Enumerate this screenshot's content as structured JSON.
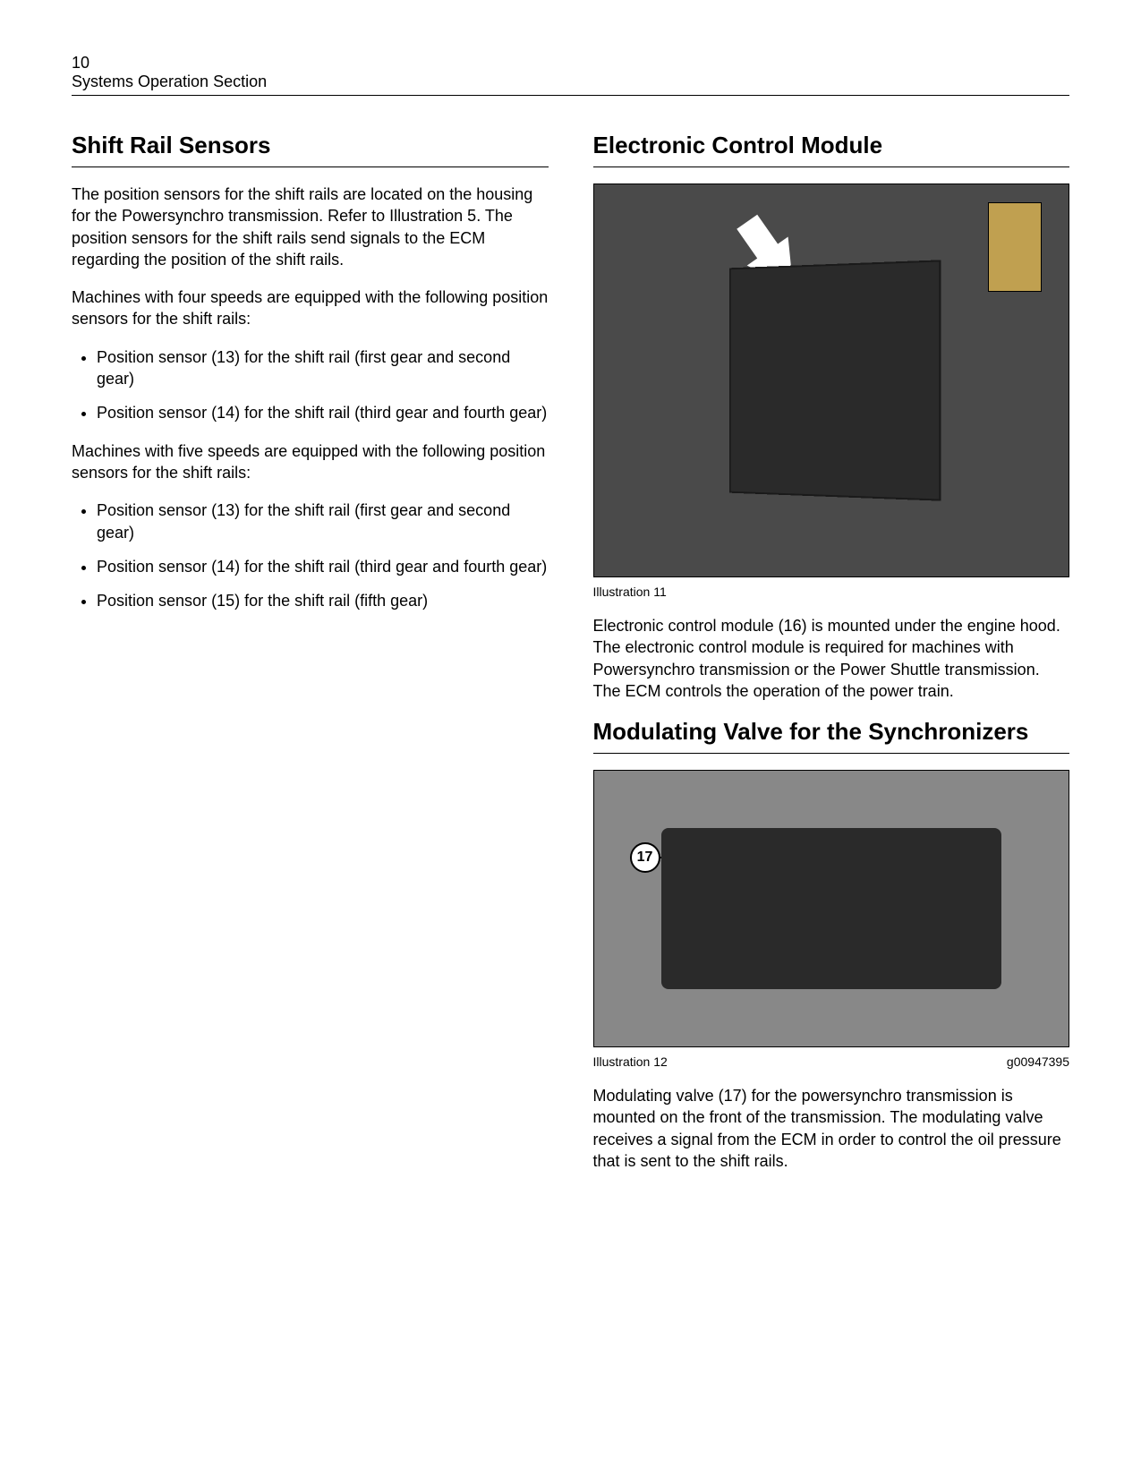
{
  "header": {
    "page_number": "10",
    "section": "Systems Operation Section"
  },
  "left": {
    "heading": "Shift Rail Sensors",
    "p1": "The position sensors for the shift rails are located on the housing for the Powersynchro transmission. Refer to Illustration 5. The position sensors for the shift rails send signals to the ECM regarding the position of the shift rails.",
    "p2": "Machines with four speeds are equipped with the following position sensors for the shift rails:",
    "list1": [
      "Position sensor (13) for the shift rail (first gear and second gear)",
      "Position sensor (14) for the shift rail (third gear and fourth gear)"
    ],
    "p3": "Machines with five speeds are equipped with the following position sensors for the shift rails:",
    "list2": [
      "Position sensor (13) for the shift rail (first gear and second gear)",
      "Position sensor (14) for the shift rail (third gear and fourth gear)",
      "Position sensor (15) for the shift rail (fifth gear)"
    ]
  },
  "right": {
    "heading1": "Electronic Control Module",
    "fig11": {
      "caption": "Illustration 11",
      "callout_number": ""
    },
    "p1": "Electronic control module (16) is mounted under the engine hood. The electronic control module is required for machines with Powersynchro transmission or the Power Shuttle transmission. The ECM controls the operation of the power train.",
    "heading2": "Modulating Valve for the Synchronizers",
    "fig12": {
      "caption": "Illustration 12",
      "code": "g00947395",
      "callout_number": "17"
    },
    "p2": "Modulating valve (17) for the powersynchro transmission is mounted on the front of the transmission. The modulating valve receives a signal from the ECM in order to control the oil pressure that is sent to the shift rails."
  },
  "colors": {
    "text": "#000000",
    "background": "#ffffff",
    "figure_bg_dark": "#4a4a4a",
    "figure_bg_mid": "#888888"
  }
}
